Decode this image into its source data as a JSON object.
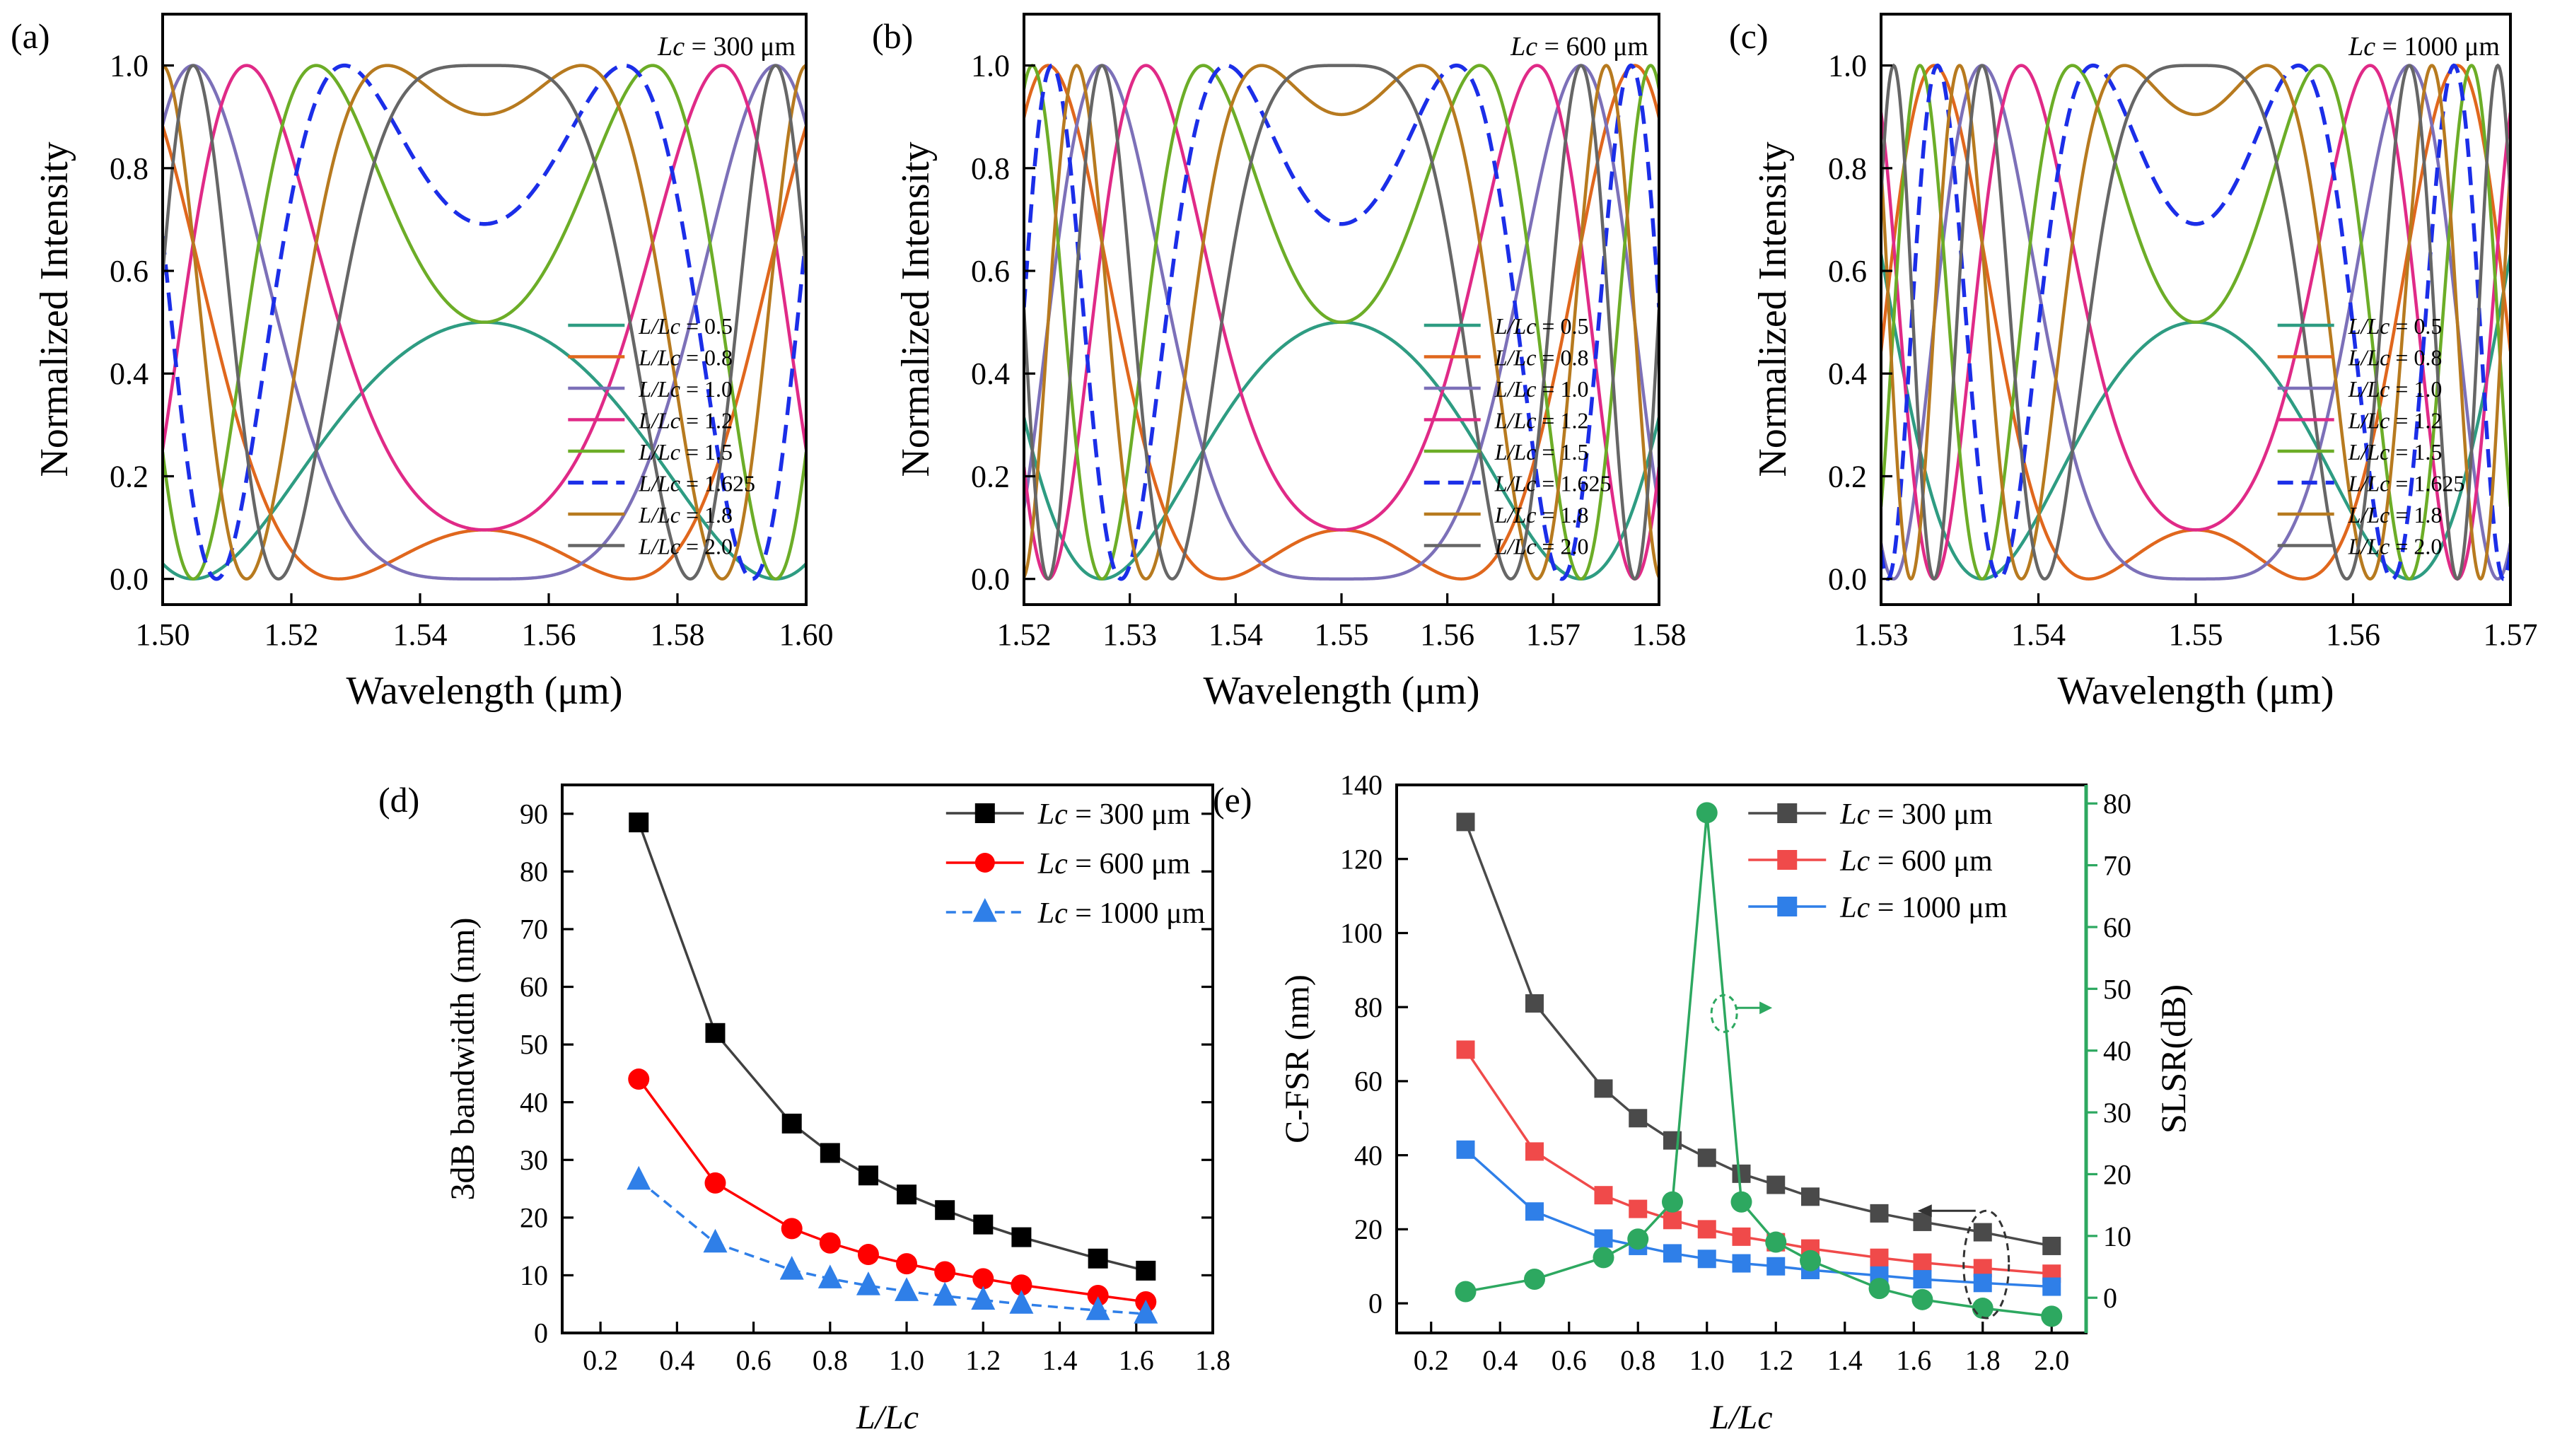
{
  "chart_data": [
    {
      "id": "a",
      "panel_label": "(a)",
      "type": "line",
      "annotation": "Lc = 300 μm",
      "annotation_parts": [
        "Lc",
        " = 300 μm"
      ],
      "xlabel": "Wavelength (μm)",
      "ylabel": "Normalized Intensity",
      "xlim": [
        1.5,
        1.6
      ],
      "ylim": [
        -0.05,
        1.1
      ],
      "xticks": [
        1.5,
        1.52,
        1.54,
        1.56,
        1.58,
        1.6
      ],
      "xtick_labels": [
        "1.50",
        "1.52",
        "1.54",
        "1.56",
        "1.58",
        "1.60"
      ],
      "yticks": [
        0,
        0.2,
        0.4,
        0.6,
        0.8,
        1.0
      ],
      "ytick_labels": [
        "0.0",
        "0.2",
        "0.4",
        "0.6",
        "0.8",
        "1.0"
      ],
      "center_wavelength": 1.55,
      "reference_half_period": 0.032,
      "series": [
        {
          "name": "L/Lc = 0.5",
          "ratio": 0.5,
          "color": "#2e9c82",
          "dash": "solid"
        },
        {
          "name": "L/Lc = 0.8",
          "ratio": 0.8,
          "color": "#e0671d",
          "dash": "solid"
        },
        {
          "name": "L/Lc = 1.0",
          "ratio": 1.0,
          "color": "#7c70b8",
          "dash": "solid"
        },
        {
          "name": "L/Lc = 1.2",
          "ratio": 1.2,
          "color": "#e02a87",
          "dash": "solid"
        },
        {
          "name": "L/Lc = 1.5",
          "ratio": 1.5,
          "color": "#6cad27",
          "dash": "solid"
        },
        {
          "name": "L/Lc = 1.625",
          "ratio": 1.625,
          "color": "#1b2ee8",
          "dash": "dashed"
        },
        {
          "name": "L/Lc = 1.8",
          "ratio": 1.8,
          "color": "#b77a1f",
          "dash": "solid"
        },
        {
          "name": "L/Lc = 2.0",
          "ratio": 2.0,
          "color": "#666666",
          "dash": "solid"
        }
      ]
    },
    {
      "id": "b",
      "panel_label": "(b)",
      "type": "line",
      "annotation": "Lc = 600 μm",
      "annotation_parts": [
        "Lc",
        " = 600 μm"
      ],
      "xlabel": "Wavelength (μm)",
      "ylabel": "Normalized Intensity",
      "xlim": [
        1.52,
        1.58
      ],
      "ylim": [
        -0.05,
        1.1
      ],
      "xticks": [
        1.52,
        1.53,
        1.54,
        1.55,
        1.56,
        1.57,
        1.58
      ],
      "xtick_labels": [
        "1.52",
        "1.53",
        "1.54",
        "1.55",
        "1.56",
        "1.57",
        "1.58"
      ],
      "yticks": [
        0,
        0.2,
        0.4,
        0.6,
        0.8,
        1.0
      ],
      "ytick_labels": [
        "0.0",
        "0.2",
        "0.4",
        "0.6",
        "0.8",
        "1.0"
      ],
      "center_wavelength": 1.55,
      "reference_half_period": 0.016,
      "series": [
        {
          "name": "L/Lc = 0.5",
          "ratio": 0.5,
          "color": "#2e9c82",
          "dash": "solid"
        },
        {
          "name": "L/Lc = 0.8",
          "ratio": 0.8,
          "color": "#e0671d",
          "dash": "solid"
        },
        {
          "name": "L/Lc = 1.0",
          "ratio": 1.0,
          "color": "#7c70b8",
          "dash": "solid"
        },
        {
          "name": "L/Lc = 1.2",
          "ratio": 1.2,
          "color": "#e02a87",
          "dash": "solid"
        },
        {
          "name": "L/Lc = 1.5",
          "ratio": 1.5,
          "color": "#6cad27",
          "dash": "solid"
        },
        {
          "name": "L/Lc = 1.625",
          "ratio": 1.625,
          "color": "#1b2ee8",
          "dash": "dashed"
        },
        {
          "name": "L/Lc = 1.8",
          "ratio": 1.8,
          "color": "#b77a1f",
          "dash": "solid"
        },
        {
          "name": "L/Lc = 2.0",
          "ratio": 2.0,
          "color": "#666666",
          "dash": "solid"
        }
      ]
    },
    {
      "id": "c",
      "panel_label": "(c)",
      "type": "line",
      "annotation": "Lc = 1000 μm",
      "annotation_parts": [
        "Lc",
        " = 1000 μm"
      ],
      "xlabel": "Wavelength (μm)",
      "ylabel": "Normalized Intensity",
      "xlim": [
        1.53,
        1.57
      ],
      "ylim": [
        -0.05,
        1.1
      ],
      "xticks": [
        1.53,
        1.54,
        1.55,
        1.56,
        1.57
      ],
      "xtick_labels": [
        "1.53",
        "1.54",
        "1.55",
        "1.56",
        "1.57"
      ],
      "yticks": [
        0,
        0.2,
        0.4,
        0.6,
        0.8,
        1.0
      ],
      "ytick_labels": [
        "0.0",
        "0.2",
        "0.4",
        "0.6",
        "0.8",
        "1.0"
      ],
      "center_wavelength": 1.55,
      "reference_half_period": 0.0096,
      "series": [
        {
          "name": "L/Lc = 0.5",
          "ratio": 0.5,
          "color": "#2e9c82",
          "dash": "solid"
        },
        {
          "name": "L/Lc = 0.8",
          "ratio": 0.8,
          "color": "#e0671d",
          "dash": "solid"
        },
        {
          "name": "L/Lc = 1.0",
          "ratio": 1.0,
          "color": "#7c70b8",
          "dash": "solid"
        },
        {
          "name": "L/Lc = 1.2",
          "ratio": 1.2,
          "color": "#e02a87",
          "dash": "solid"
        },
        {
          "name": "L/Lc = 1.5",
          "ratio": 1.5,
          "color": "#6cad27",
          "dash": "solid"
        },
        {
          "name": "L/Lc = 1.625",
          "ratio": 1.625,
          "color": "#1b2ee8",
          "dash": "dashed"
        },
        {
          "name": "L/Lc = 1.8",
          "ratio": 1.8,
          "color": "#b77a1f",
          "dash": "solid"
        },
        {
          "name": "L/Lc = 2.0",
          "ratio": 2.0,
          "color": "#666666",
          "dash": "solid"
        }
      ]
    },
    {
      "id": "d",
      "panel_label": "(d)",
      "type": "line",
      "xlabel": "L/Lc",
      "ylabel": "3dB bandwidth (nm)",
      "xlim": [
        0.1,
        1.8
      ],
      "ylim": [
        0,
        95
      ],
      "xticks": [
        0.2,
        0.4,
        0.6,
        0.8,
        1.0,
        1.2,
        1.4,
        1.6,
        1.8
      ],
      "xtick_labels": [
        "0.2",
        "0.4",
        "0.6",
        "0.8",
        "1.0",
        "1.2",
        "1.4",
        "1.6",
        "1.8"
      ],
      "yticks": [
        0,
        10,
        20,
        30,
        40,
        50,
        60,
        70,
        80,
        90
      ],
      "ytick_labels": [
        "0",
        "10",
        "20",
        "30",
        "40",
        "50",
        "60",
        "70",
        "80",
        "90"
      ],
      "x": [
        0.3,
        0.5,
        0.7,
        0.8,
        0.9,
        1.0,
        1.1,
        1.2,
        1.3,
        1.5,
        1.625
      ],
      "series": [
        {
          "name": "Lc = 300 μm",
          "name_parts": [
            "Lc",
            " = 300 μm"
          ],
          "color": "#000000",
          "line_color": "#404040",
          "marker": "square",
          "dash": "solid",
          "values": [
            88.5,
            52,
            36.3,
            31.2,
            27.3,
            24,
            21.3,
            18.8,
            16.6,
            12.9,
            10.8
          ]
        },
        {
          "name": "Lc = 600 μm",
          "name_parts": [
            "Lc",
            " = 600 μm"
          ],
          "color": "#ff0000",
          "line_color": "#ff0000",
          "marker": "circle",
          "dash": "solid",
          "values": [
            44,
            26,
            18.1,
            15.6,
            13.6,
            12,
            10.6,
            9.4,
            8.3,
            6.5,
            5.4
          ]
        },
        {
          "name": "Lc = 1000 μm",
          "name_parts": [
            "Lc",
            " = 1000 μm"
          ],
          "color": "#2f7fe8",
          "line_color": "#2f7fe8",
          "marker": "triangle",
          "dash": "dashed",
          "values": [
            26.5,
            15.6,
            10.9,
            9.4,
            8.2,
            7.2,
            6.4,
            5.7,
            5.0,
            3.9,
            3.3
          ]
        }
      ]
    },
    {
      "id": "e",
      "panel_label": "(e)",
      "type": "line",
      "xlabel": "L/Lc",
      "ylabel": "C-FSR (nm)",
      "ylabel_right": "SLSR(dB)",
      "xlim": [
        0.1,
        2.1
      ],
      "ylim": [
        -8,
        140
      ],
      "ylim_right": [
        -5.7,
        83
      ],
      "xticks": [
        0.2,
        0.4,
        0.6,
        0.8,
        1.0,
        1.2,
        1.4,
        1.6,
        1.8,
        2.0
      ],
      "xtick_labels": [
        "0.2",
        "0.4",
        "0.6",
        "0.8",
        "1.0",
        "1.2",
        "1.4",
        "1.6",
        "1.8",
        "2.0"
      ],
      "yticks": [
        0,
        20,
        40,
        60,
        80,
        100,
        120,
        140
      ],
      "ytick_labels": [
        "0",
        "20",
        "40",
        "60",
        "80",
        "100",
        "120",
        "140"
      ],
      "yticks_right": [
        0,
        10,
        20,
        30,
        40,
        50,
        60,
        70,
        80
      ],
      "ytick_labels_right": [
        "0",
        "10",
        "20",
        "30",
        "40",
        "50",
        "60",
        "70",
        "80"
      ],
      "x": [
        0.3,
        0.5,
        0.7,
        0.8,
        0.9,
        1.0,
        1.1,
        1.2,
        1.3,
        1.5,
        1.625,
        1.8,
        2.0
      ],
      "series": [
        {
          "name": "Lc = 300 μm",
          "name_parts": [
            "Lc",
            " = 300 μm"
          ],
          "color": "#4a4a4a",
          "line_color": "#4a4a4a",
          "marker": "square",
          "axis": "left",
          "values": [
            130,
            81,
            58,
            50,
            44,
            39.3,
            35,
            32,
            28.8,
            24.3,
            22,
            19.2,
            15.5
          ]
        },
        {
          "name": "Lc = 600 μm",
          "name_parts": [
            "Lc",
            " = 600 μm"
          ],
          "color": "#f04a4a",
          "line_color": "#f04a4a",
          "marker": "square",
          "axis": "left",
          "values": [
            68.5,
            41,
            29.2,
            25.5,
            22.5,
            20,
            18,
            16.5,
            14.8,
            12.3,
            11,
            9.5,
            8
          ]
        },
        {
          "name": "Lc = 1000 μm",
          "name_parts": [
            "Lc",
            " = 1000 μm"
          ],
          "color": "#2f7fe8",
          "line_color": "#2f7fe8",
          "marker": "square",
          "axis": "left",
          "values": [
            41.5,
            24.8,
            17.5,
            15.5,
            13.5,
            12,
            10.8,
            10,
            9,
            7.5,
            6.5,
            5.5,
            4.5
          ]
        },
        {
          "name": "SLSR",
          "color": "#2da860",
          "line_color": "#2da860",
          "marker": "circle",
          "axis": "right",
          "legend": false,
          "values": [
            1,
            3,
            6.5,
            9.5,
            15.5,
            78.5,
            15.5,
            9,
            6,
            1.5,
            -0.3,
            -1.7,
            -3
          ]
        }
      ],
      "annotations": {
        "left_arrow": "←",
        "right_arrow": "→"
      }
    }
  ]
}
